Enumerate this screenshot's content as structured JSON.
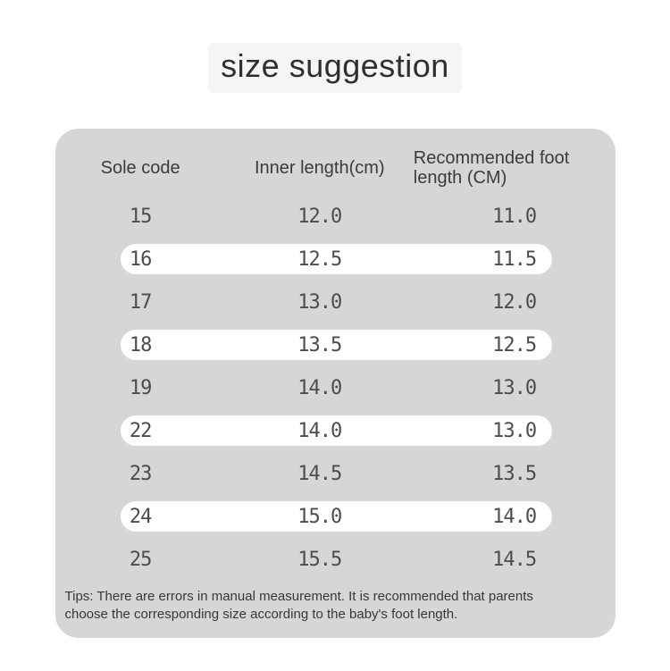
{
  "title": "size suggestion",
  "chart_data": {
    "type": "table",
    "title": "size suggestion",
    "columns": [
      "Sole code",
      "Inner length(cm)",
      "Recommended foot length (CM)"
    ],
    "column_header_line_breaks": {
      "2": [
        "Recommended foot",
        "length (CM)"
      ]
    },
    "rows": [
      [
        "15",
        "12.0",
        "11.0"
      ],
      [
        "16",
        "12.5",
        "11.5"
      ],
      [
        "17",
        "13.0",
        "12.0"
      ],
      [
        "18",
        "13.5",
        "12.5"
      ],
      [
        "19",
        "14.0",
        "13.0"
      ],
      [
        "22",
        "14.0",
        "13.0"
      ],
      [
        "23",
        "14.5",
        "13.5"
      ],
      [
        "24",
        "15.0",
        "14.0"
      ],
      [
        "25",
        "15.5",
        "14.5"
      ]
    ],
    "highlighted_row_indices": [
      1,
      3,
      5,
      7
    ],
    "note_lines": [
      "Tips: There are errors in manual measurement. It is recommended that parents",
      "choose the corresponding size according to the baby's foot length."
    ]
  },
  "colors": {
    "card_bg": "#d6d6d8",
    "row_highlight": "#ffffff",
    "title_halo": "#f5f5f6",
    "body_bg": "#ffffff",
    "text": "#4c4c4f"
  }
}
